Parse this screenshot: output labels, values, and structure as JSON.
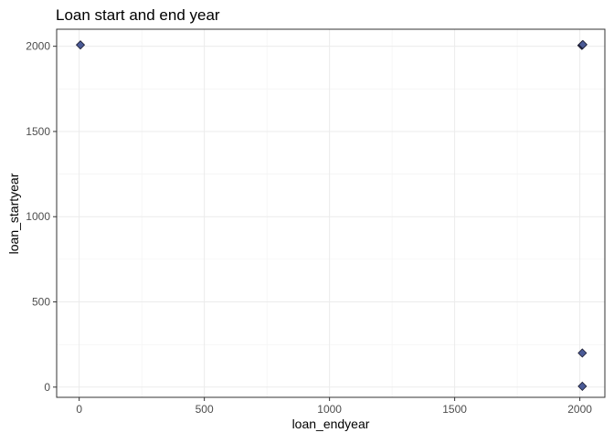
{
  "chart_data": {
    "type": "scatter",
    "title": "Loan start and end year",
    "xlabel": "loan_endyear",
    "ylabel": "loan_startyear",
    "xlim": [
      -90,
      2100
    ],
    "ylim": [
      -60,
      2100
    ],
    "xticks": [
      0,
      500,
      1000,
      1500,
      2000
    ],
    "yticks": [
      0,
      500,
      1000,
      1500,
      2000
    ],
    "grid": true,
    "points": [
      {
        "x": 5,
        "y": 2008
      },
      {
        "x": 2008,
        "y": 2005
      },
      {
        "x": 2010,
        "y": 2007
      },
      {
        "x": 2012,
        "y": 2010
      },
      {
        "x": 2010,
        "y": 200
      },
      {
        "x": 2010,
        "y": 5
      }
    ],
    "marker": "diamond",
    "colors": {
      "fill": "#4a5a96",
      "stroke": "#1a1a2e"
    }
  }
}
